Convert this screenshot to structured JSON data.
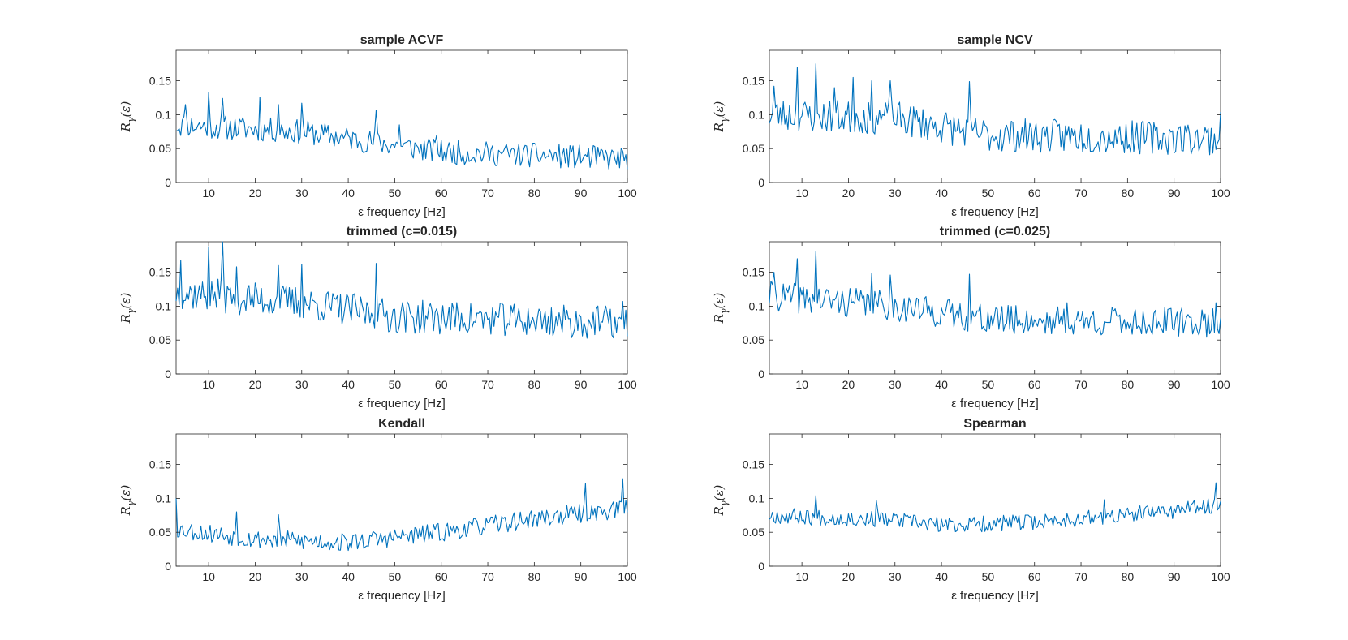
{
  "chart_data": [
    {
      "type": "line",
      "title": "sample ACVF",
      "xlabel": "ε frequency [Hz]",
      "ylabel": "Rγ(ε)",
      "ylabel_main": "R",
      "ylabel_sub": "γ",
      "ylabel_arg": "(ε)",
      "xlim": [
        3,
        100
      ],
      "ylim": [
        0,
        0.195
      ],
      "xticks": [
        10,
        20,
        30,
        40,
        50,
        60,
        70,
        80,
        90,
        100
      ],
      "yticks": [
        0,
        0.05,
        0.1,
        0.15
      ],
      "ytick_labels": [
        "0",
        "0.05",
        "0.1",
        "0.15"
      ],
      "color": "#0072BD",
      "shape": {
        "trend": [
          [
            3,
            0.085
          ],
          [
            30,
            0.075
          ],
          [
            60,
            0.045
          ],
          [
            100,
            0.035
          ]
        ],
        "noise": 0.018,
        "seed": 11
      },
      "peaks": [
        [
          5,
          0.115
        ],
        [
          10,
          0.133
        ],
        [
          13,
          0.124
        ],
        [
          21,
          0.126
        ],
        [
          25,
          0.115
        ],
        [
          30,
          0.117
        ],
        [
          46,
          0.107
        ],
        [
          51,
          0.085
        ],
        [
          59,
          0.07
        ],
        [
          80,
          0.058
        ]
      ]
    },
    {
      "type": "line",
      "title": "sample NCV",
      "xlabel": "ε frequency [Hz]",
      "ylabel": "Rγ(ε)",
      "ylabel_main": "R",
      "ylabel_sub": "γ",
      "ylabel_arg": "(ε)",
      "xlim": [
        3,
        100
      ],
      "ylim": [
        0,
        0.195
      ],
      "xticks": [
        10,
        20,
        30,
        40,
        50,
        60,
        70,
        80,
        90,
        100
      ],
      "yticks": [
        0,
        0.05,
        0.1,
        0.15
      ],
      "ytick_labels": [
        "0",
        "0.05",
        "0.1",
        "0.15"
      ],
      "color": "#0072BD",
      "shape": {
        "trend": [
          [
            3,
            0.1
          ],
          [
            30,
            0.095
          ],
          [
            50,
            0.07
          ],
          [
            100,
            0.065
          ]
        ],
        "noise": 0.025,
        "seed": 23
      },
      "peaks": [
        [
          4,
          0.142
        ],
        [
          9,
          0.17
        ],
        [
          13,
          0.175
        ],
        [
          17,
          0.14
        ],
        [
          21,
          0.155
        ],
        [
          25,
          0.15
        ],
        [
          29,
          0.15
        ],
        [
          46,
          0.149
        ],
        [
          100,
          0.104
        ]
      ]
    },
    {
      "type": "line",
      "title": "trimmed (c=0.015)",
      "xlabel": "ε frequency [Hz]",
      "ylabel": "Rγ(ε)",
      "ylabel_main": "R",
      "ylabel_sub": "γ",
      "ylabel_arg": "(ε)",
      "xlim": [
        3,
        100
      ],
      "ylim": [
        0,
        0.195
      ],
      "xticks": [
        10,
        20,
        30,
        40,
        50,
        60,
        70,
        80,
        90,
        100
      ],
      "yticks": [
        0,
        0.05,
        0.1,
        0.15
      ],
      "ytick_labels": [
        "0",
        "0.05",
        "0.1",
        "0.15"
      ],
      "color": "#0072BD",
      "shape": {
        "trend": [
          [
            3,
            0.12
          ],
          [
            30,
            0.105
          ],
          [
            50,
            0.085
          ],
          [
            100,
            0.075
          ]
        ],
        "noise": 0.025,
        "seed": 37
      },
      "peaks": [
        [
          4,
          0.168
        ],
        [
          10,
          0.188
        ],
        [
          13,
          0.195
        ],
        [
          16,
          0.158
        ],
        [
          25,
          0.16
        ],
        [
          30,
          0.162
        ],
        [
          46,
          0.163
        ],
        [
          99,
          0.107
        ]
      ]
    },
    {
      "type": "line",
      "title": "trimmed (c=0.025)",
      "xlabel": "ε frequency [Hz]",
      "ylabel": "Rγ(ε)",
      "ylabel_main": "R",
      "ylabel_sub": "γ",
      "ylabel_arg": "(ε)",
      "xlim": [
        3,
        100
      ],
      "ylim": [
        0,
        0.195
      ],
      "xticks": [
        10,
        20,
        30,
        40,
        50,
        60,
        70,
        80,
        90,
        100
      ],
      "yticks": [
        0,
        0.05,
        0.1,
        0.15
      ],
      "ytick_labels": [
        "0",
        "0.05",
        "0.1",
        "0.15"
      ],
      "color": "#0072BD",
      "shape": {
        "trend": [
          [
            3,
            0.115
          ],
          [
            30,
            0.1
          ],
          [
            50,
            0.08
          ],
          [
            100,
            0.075
          ]
        ],
        "noise": 0.022,
        "seed": 41
      },
      "peaks": [
        [
          4,
          0.15
        ],
        [
          9,
          0.17
        ],
        [
          13,
          0.181
        ],
        [
          25,
          0.148
        ],
        [
          29,
          0.146
        ],
        [
          46,
          0.147
        ],
        [
          67,
          0.105
        ],
        [
          99,
          0.105
        ]
      ]
    },
    {
      "type": "line",
      "title": "Kendall",
      "xlabel": "ε frequency [Hz]",
      "ylabel": "Rγ(ε)",
      "ylabel_main": "R",
      "ylabel_sub": "γ",
      "ylabel_arg": "(ε)",
      "xlim": [
        3,
        100
      ],
      "ylim": [
        0,
        0.195
      ],
      "xticks": [
        10,
        20,
        30,
        40,
        50,
        60,
        70,
        80,
        90,
        100
      ],
      "yticks": [
        0,
        0.05,
        0.1,
        0.15
      ],
      "ytick_labels": [
        "0",
        "0.05",
        "0.1",
        "0.15"
      ],
      "color": "#0072BD",
      "shape": {
        "trend": [
          [
            3,
            0.055
          ],
          [
            20,
            0.04
          ],
          [
            40,
            0.035
          ],
          [
            60,
            0.05
          ],
          [
            80,
            0.07
          ],
          [
            100,
            0.085
          ]
        ],
        "noise": 0.014,
        "seed": 53
      },
      "peaks": [
        [
          3,
          0.1
        ],
        [
          16,
          0.08
        ],
        [
          25,
          0.076
        ],
        [
          91,
          0.122
        ],
        [
          99,
          0.129
        ]
      ]
    },
    {
      "type": "line",
      "title": "Spearman",
      "xlabel": "ε frequency [Hz]",
      "ylabel": "Rγ(ε)",
      "ylabel_main": "R",
      "ylabel_sub": "γ",
      "ylabel_arg": "(ε)",
      "xlim": [
        3,
        100
      ],
      "ylim": [
        0,
        0.195
      ],
      "xticks": [
        10,
        20,
        30,
        40,
        50,
        60,
        70,
        80,
        90,
        100
      ],
      "yticks": [
        0,
        0.05,
        0.1,
        0.15
      ],
      "ytick_labels": [
        "0",
        "0.05",
        "0.1",
        "0.15"
      ],
      "color": "#0072BD",
      "shape": {
        "trend": [
          [
            3,
            0.075
          ],
          [
            30,
            0.068
          ],
          [
            40,
            0.06
          ],
          [
            60,
            0.065
          ],
          [
            80,
            0.075
          ],
          [
            100,
            0.09
          ]
        ],
        "noise": 0.012,
        "seed": 67
      },
      "peaks": [
        [
          13,
          0.104
        ],
        [
          26,
          0.097
        ],
        [
          75,
          0.098
        ],
        [
          99,
          0.123
        ]
      ]
    }
  ]
}
